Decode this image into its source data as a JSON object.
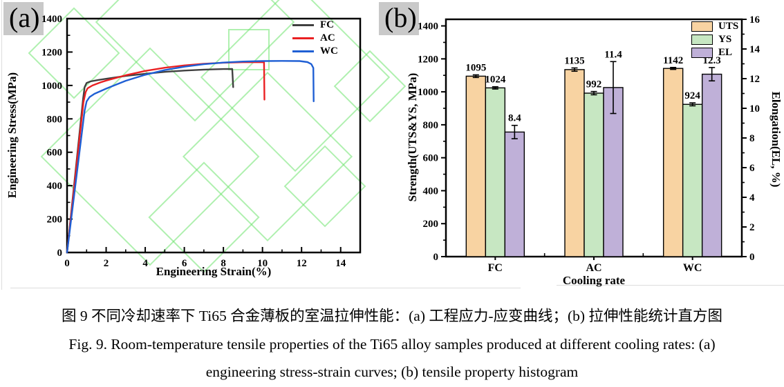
{
  "figure": {
    "caption_zh": "图 9 不同冷却速率下 Ti65 合金薄板的室温拉伸性能：(a) 工程应力-应变曲线；(b) 拉伸性能统计直方图",
    "caption_en_line1": "Fig. 9. Room-temperature tensile properties of the Ti65 alloy samples produced at different cooling rates: (a)",
    "caption_en_line2": "engineering stress-strain curves; (b) tensile property histogram"
  },
  "colors": {
    "fc_line": "#404040",
    "ac_line": "#ea2022",
    "wc_line": "#1f5fd4",
    "uts_fill": "#f8d3a2",
    "ys_fill": "#c7e7c2",
    "el_fill": "#bfb0d8",
    "axis": "#000000",
    "watermark_green": "#6ee46e",
    "panel_tag_bg": "#c9c9c9"
  },
  "chart_data": [
    {
      "type": "line",
      "panel_label": "(a)",
      "title": "",
      "xlabel": "Engineering Strain(%)",
      "ylabel": "Engineering Stress(MPa)",
      "xlim": [
        0,
        15
      ],
      "ylim": [
        0,
        1400
      ],
      "xticks": [
        0,
        2,
        4,
        6,
        8,
        10,
        12,
        14
      ],
      "xminor": [
        1,
        3,
        5,
        7,
        9,
        11,
        13
      ],
      "yticks": [
        0,
        200,
        400,
        600,
        800,
        1000,
        1200,
        1400
      ],
      "yminor": [
        100,
        300,
        500,
        700,
        900,
        1100,
        1300
      ],
      "grid": false,
      "legend_position": "top-right",
      "series": [
        {
          "name": "FC",
          "color": "#404040",
          "points": [
            [
              0,
              0
            ],
            [
              0.82,
              920
            ],
            [
              0.9,
              990
            ],
            [
              1.0,
              1015
            ],
            [
              1.2,
              1024
            ],
            [
              1.6,
              1033
            ],
            [
              2,
              1040
            ],
            [
              3,
              1057
            ],
            [
              4,
              1070
            ],
            [
              5,
              1081
            ],
            [
              6,
              1089
            ],
            [
              7,
              1095
            ],
            [
              8,
              1098
            ],
            [
              8.45,
              1099
            ],
            [
              8.5,
              990
            ]
          ]
        },
        {
          "name": "AC",
          "color": "#ea2022",
          "points": [
            [
              0,
              0
            ],
            [
              0.84,
              900
            ],
            [
              0.95,
              960
            ],
            [
              1.05,
              983
            ],
            [
              1.3,
              1000
            ],
            [
              1.7,
              1018
            ],
            [
              2,
              1029
            ],
            [
              3,
              1061
            ],
            [
              4,
              1087
            ],
            [
              5,
              1106
            ],
            [
              6,
              1120
            ],
            [
              7,
              1130
            ],
            [
              8,
              1136
            ],
            [
              9,
              1139
            ],
            [
              9.8,
              1140
            ],
            [
              10.08,
              1139
            ],
            [
              10.1,
              915
            ]
          ]
        },
        {
          "name": "WC",
          "color": "#1f5fd4",
          "points": [
            [
              0,
              0
            ],
            [
              0.9,
              850
            ],
            [
              1.0,
              905
            ],
            [
              1.15,
              930
            ],
            [
              1.4,
              950
            ],
            [
              2,
              981
            ],
            [
              3,
              1028
            ],
            [
              4,
              1064
            ],
            [
              5,
              1092
            ],
            [
              6,
              1112
            ],
            [
              7,
              1127
            ],
            [
              8,
              1137
            ],
            [
              9,
              1143
            ],
            [
              10,
              1146
            ],
            [
              11,
              1147
            ],
            [
              11.9,
              1146
            ],
            [
              12.3,
              1140
            ],
            [
              12.5,
              1128
            ],
            [
              12.6,
              1105
            ],
            [
              12.62,
              905
            ]
          ]
        }
      ]
    },
    {
      "type": "bar",
      "panel_label": "(b)",
      "title": "",
      "xlabel": "Cooling rate",
      "ylabel_left": "Strength(UTS&YS, MPa)",
      "ylabel_right": "Elongation(EL, %)",
      "ylim_left": [
        0,
        1440
      ],
      "ylim_right": [
        0,
        16
      ],
      "yticks_left": [
        0,
        200,
        400,
        600,
        800,
        1000,
        1200,
        1400
      ],
      "yminor_left": [
        100,
        300,
        500,
        700,
        900,
        1100,
        1300
      ],
      "yticks_right": [
        0,
        2,
        4,
        6,
        8,
        10,
        12,
        14,
        16
      ],
      "yminor_right": [
        1,
        3,
        5,
        7,
        9,
        11,
        13,
        15
      ],
      "categories": [
        "FC",
        "AC",
        "WC"
      ],
      "grid": false,
      "legend_position": "top-right",
      "series": [
        {
          "name": "UTS",
          "axis": "left",
          "color": "#f8d3a2",
          "values": [
            1095,
            1135,
            1142
          ],
          "errors": [
            8,
            10,
            6
          ],
          "labels": [
            "1095",
            "1135",
            "1142"
          ]
        },
        {
          "name": "YS",
          "axis": "left",
          "color": "#c7e7c2",
          "values": [
            1024,
            992,
            924
          ],
          "errors": [
            7,
            10,
            9
          ],
          "labels": [
            "1024",
            "992",
            "924"
          ]
        },
        {
          "name": "EL",
          "axis": "right",
          "color": "#bfb0d8",
          "values": [
            8.4,
            11.4,
            12.3
          ],
          "errors": [
            0.45,
            1.75,
            0.45
          ],
          "labels": [
            "8.4",
            "11.4",
            "12.3"
          ]
        }
      ]
    }
  ]
}
